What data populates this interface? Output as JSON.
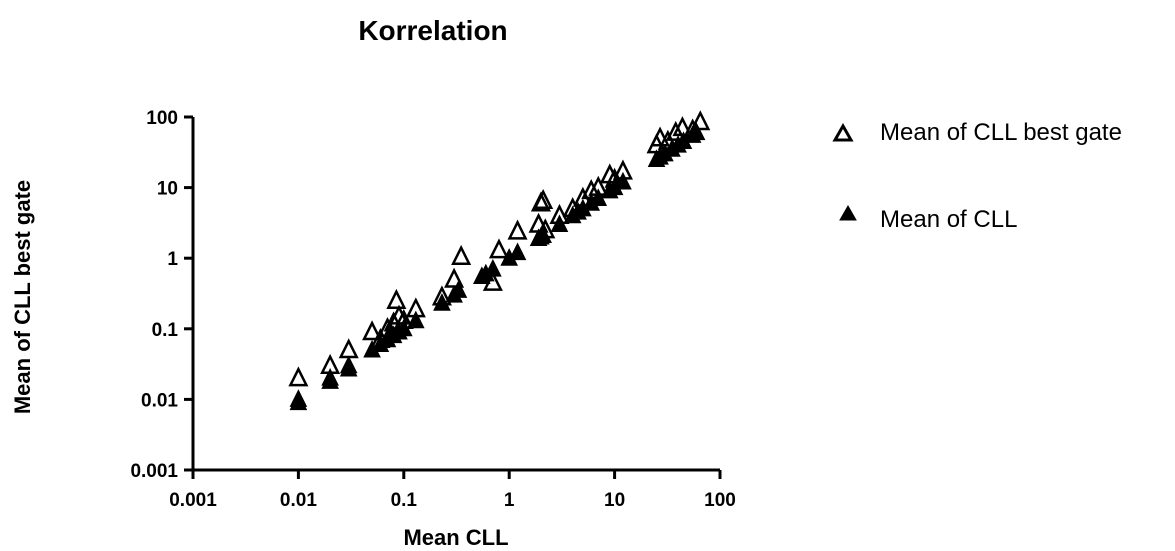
{
  "chart_data": {
    "type": "scatter",
    "title": "Korrelation",
    "xlabel": "Mean CLL",
    "ylabel": "Mean of CLL best gate",
    "x_scale": "log",
    "y_scale": "log",
    "xlim": [
      0.001,
      100
    ],
    "ylim": [
      0.001,
      100
    ],
    "x_ticks": [
      "0.001",
      "0.01",
      "0.1",
      "1",
      "10",
      "100"
    ],
    "y_ticks": [
      "0.001",
      "0.01",
      "0.1",
      "1",
      "10",
      "100"
    ],
    "grid": false,
    "legend_position": "right",
    "series": [
      {
        "name": "Mean of CLL best gate",
        "marker": "open-triangle",
        "color": "#000000",
        "points": [
          [
            0.01,
            0.02
          ],
          [
            0.02,
            0.03
          ],
          [
            0.03,
            0.05
          ],
          [
            0.05,
            0.09
          ],
          [
            0.06,
            0.07
          ],
          [
            0.07,
            0.1
          ],
          [
            0.08,
            0.12
          ],
          [
            0.085,
            0.25
          ],
          [
            0.09,
            0.15
          ],
          [
            0.1,
            0.13
          ],
          [
            0.13,
            0.19
          ],
          [
            0.23,
            0.28
          ],
          [
            0.3,
            0.5
          ],
          [
            0.35,
            1.05
          ],
          [
            0.7,
            0.45
          ],
          [
            0.8,
            1.3
          ],
          [
            1.2,
            2.4
          ],
          [
            1.9,
            3.0
          ],
          [
            2.0,
            6.0
          ],
          [
            2.1,
            6.5
          ],
          [
            2.2,
            2.5
          ],
          [
            3.0,
            4.0
          ],
          [
            4.0,
            5.0
          ],
          [
            5.0,
            7.0
          ],
          [
            6.0,
            9.0
          ],
          [
            7.0,
            10.0
          ],
          [
            9.0,
            15.0
          ],
          [
            10.0,
            13.0
          ],
          [
            12.0,
            17.0
          ],
          [
            25.0,
            40.0
          ],
          [
            27.0,
            50.0
          ],
          [
            32.0,
            45.0
          ],
          [
            38.0,
            60.0
          ],
          [
            44.0,
            70.0
          ],
          [
            55.0,
            65.0
          ],
          [
            65.0,
            85.0
          ]
        ]
      },
      {
        "name": "Mean of CLL",
        "marker": "filled-triangle",
        "color": "#000000",
        "points": [
          [
            0.01,
            0.01
          ],
          [
            0.01,
            0.009
          ],
          [
            0.02,
            0.02
          ],
          [
            0.02,
            0.018
          ],
          [
            0.03,
            0.03
          ],
          [
            0.03,
            0.027
          ],
          [
            0.05,
            0.05
          ],
          [
            0.06,
            0.06
          ],
          [
            0.07,
            0.07
          ],
          [
            0.075,
            0.09
          ],
          [
            0.08,
            0.08
          ],
          [
            0.09,
            0.09
          ],
          [
            0.1,
            0.1
          ],
          [
            0.13,
            0.13
          ],
          [
            0.23,
            0.23
          ],
          [
            0.3,
            0.3
          ],
          [
            0.33,
            0.35
          ],
          [
            0.55,
            0.55
          ],
          [
            0.6,
            0.6
          ],
          [
            0.7,
            0.7
          ],
          [
            1.0,
            1.0
          ],
          [
            1.2,
            1.2
          ],
          [
            1.9,
            1.9
          ],
          [
            2.0,
            2.0
          ],
          [
            2.1,
            2.1
          ],
          [
            3.0,
            3.0
          ],
          [
            4.0,
            4.0
          ],
          [
            4.5,
            4.5
          ],
          [
            5.0,
            5.0
          ],
          [
            6.0,
            6.0
          ],
          [
            7.0,
            7.0
          ],
          [
            9.0,
            9.0
          ],
          [
            10.0,
            10.0
          ],
          [
            12.0,
            12.0
          ],
          [
            25.0,
            25.0
          ],
          [
            27.0,
            27.0
          ],
          [
            30.0,
            30.0
          ],
          [
            35.0,
            35.0
          ],
          [
            40.0,
            40.0
          ],
          [
            45.0,
            45.0
          ],
          [
            55.0,
            55.0
          ],
          [
            60.0,
            60.0
          ]
        ]
      }
    ]
  }
}
